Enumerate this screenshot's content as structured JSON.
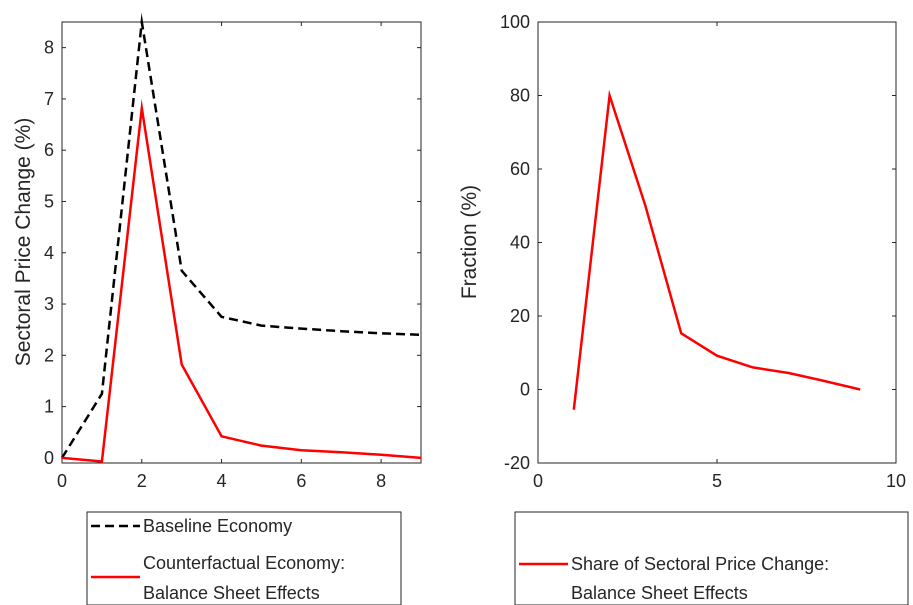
{
  "chart_data": [
    {
      "type": "line",
      "title": "",
      "xlabel": "",
      "ylabel": "Sectoral Price Change (%)",
      "xlim": [
        0,
        9
      ],
      "ylim": [
        -0.1,
        8.5
      ],
      "xticks": [
        0,
        2,
        4,
        6,
        8
      ],
      "yticks": [
        0,
        1,
        2,
        3,
        4,
        5,
        6,
        7,
        8
      ],
      "grid": false,
      "legend_position": "below",
      "series": [
        {
          "name": "Baseline Economy",
          "color": "#000000",
          "style": "dashed",
          "x": [
            0,
            1,
            2,
            3,
            4,
            5,
            6,
            7,
            8,
            9
          ],
          "y": [
            0,
            1.25,
            8.5,
            3.65,
            2.75,
            2.58,
            2.52,
            2.47,
            2.43,
            2.4
          ]
        },
        {
          "name": "Counterfactual Economy:\nBalance Sheet Effects",
          "color": "#ff0000",
          "style": "solid",
          "x": [
            0,
            1,
            2,
            3,
            4,
            5,
            6,
            7,
            8,
            9
          ],
          "y": [
            0,
            -0.07,
            6.82,
            1.82,
            0.42,
            0.24,
            0.15,
            0.11,
            0.06,
            0
          ]
        }
      ]
    },
    {
      "type": "line",
      "title": "",
      "xlabel": "",
      "ylabel": "Fraction (%)",
      "xlim": [
        0,
        10
      ],
      "ylim": [
        -20,
        100
      ],
      "xticks": [
        0,
        5,
        10
      ],
      "yticks": [
        -20,
        0,
        20,
        40,
        60,
        80,
        100
      ],
      "grid": false,
      "legend_position": "below",
      "series": [
        {
          "name": "Share of Sectoral Price Change:\nBalance Sheet Effects",
          "color": "#ff0000",
          "style": "solid",
          "x": [
            1,
            2,
            3,
            4,
            5,
            6,
            7,
            8,
            9
          ],
          "y": [
            -5.5,
            80,
            50,
            15.3,
            9.2,
            6,
            4.5,
            2.3,
            0
          ]
        }
      ]
    }
  ]
}
